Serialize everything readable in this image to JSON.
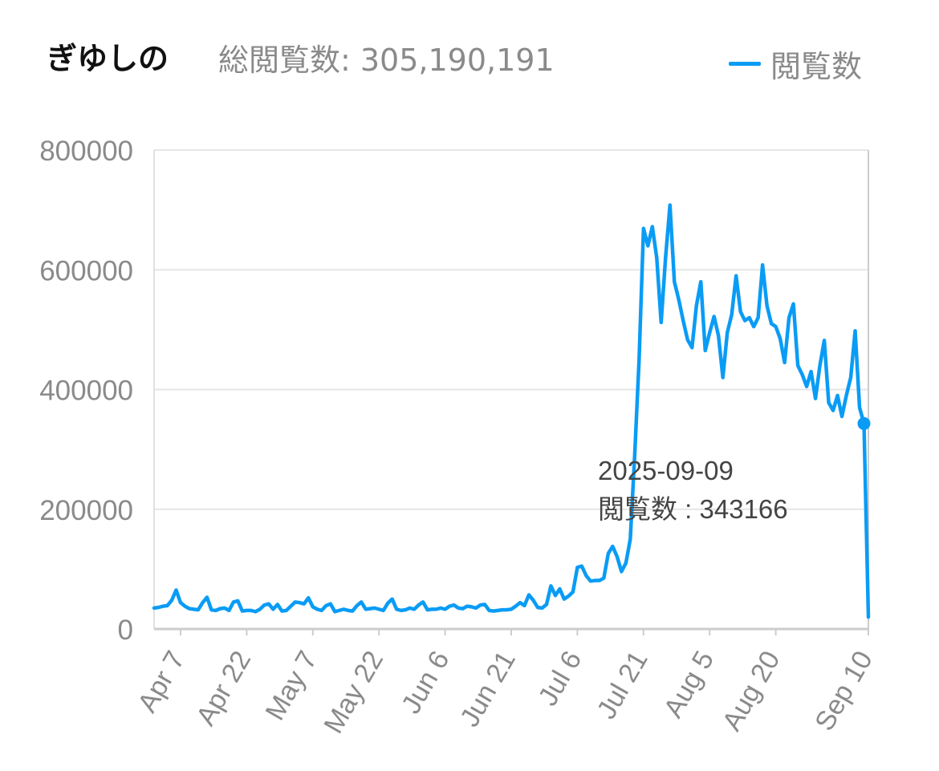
{
  "header": {
    "title": "ぎゆしの",
    "total_label": "総閲覧数: 305,190,191"
  },
  "legend": {
    "label": "閲覧数",
    "color": "#0a9cf5"
  },
  "tooltip": {
    "date": "2025-09-09",
    "label": "閲覧数",
    "value": "343166"
  },
  "chart_data": {
    "type": "line",
    "start_date": "2025-04-01",
    "ylim": [
      0,
      800000
    ],
    "y_ticks": [
      0,
      200000,
      400000,
      600000,
      800000
    ],
    "x_tick_labels": [
      "Apr 7",
      "Apr 22",
      "May 7",
      "May 22",
      "Jun 6",
      "Jun 21",
      "Jul 6",
      "Jul 21",
      "Aug 5",
      "Aug 20",
      "Sep 10"
    ],
    "grid": true,
    "legend_position": "top-right",
    "series": [
      {
        "name": "閲覧数",
        "color": "#0a9cf5",
        "values": [
          35000,
          36000,
          38000,
          39000,
          48000,
          65000,
          44000,
          38000,
          34000,
          33000,
          32000,
          44000,
          53000,
          32000,
          31000,
          34000,
          35000,
          31000,
          45000,
          47000,
          30000,
          31000,
          31000,
          29000,
          33000,
          40000,
          42000,
          33000,
          41000,
          30000,
          31000,
          38000,
          45000,
          44000,
          42000,
          52000,
          37000,
          33000,
          31000,
          39000,
          42000,
          29000,
          31000,
          33000,
          31000,
          30000,
          39000,
          45000,
          33000,
          34000,
          35000,
          33000,
          31000,
          43000,
          50000,
          33000,
          31000,
          32000,
          35000,
          33000,
          40000,
          45000,
          32000,
          33000,
          33000,
          35000,
          33000,
          38000,
          40000,
          35000,
          34000,
          38000,
          37000,
          35000,
          40000,
          41000,
          31000,
          30000,
          31000,
          32000,
          32000,
          33000,
          38000,
          44000,
          39000,
          57000,
          48000,
          36000,
          35000,
          41000,
          72000,
          56000,
          67000,
          50000,
          55000,
          62000,
          103000,
          105000,
          89000,
          80000,
          81000,
          81000,
          85000,
          126000,
          138000,
          121000,
          96000,
          110000,
          150000,
          290000,
          450000,
          669000,
          640000,
          672000,
          620000,
          512000,
          620000,
          708000,
          580000,
          550000,
          515000,
          483000,
          470000,
          540000,
          580000,
          465000,
          495000,
          522000,
          490000,
          420000,
          495000,
          525000,
          590000,
          530000,
          515000,
          520000,
          505000,
          520000,
          608000,
          540000,
          510000,
          505000,
          485000,
          445000,
          520000,
          543000,
          440000,
          425000,
          405000,
          430000,
          385000,
          440000,
          482000,
          378000,
          365000,
          390000,
          355000,
          390000,
          420000,
          498000,
          370000,
          343166,
          20000
        ]
      }
    ]
  }
}
